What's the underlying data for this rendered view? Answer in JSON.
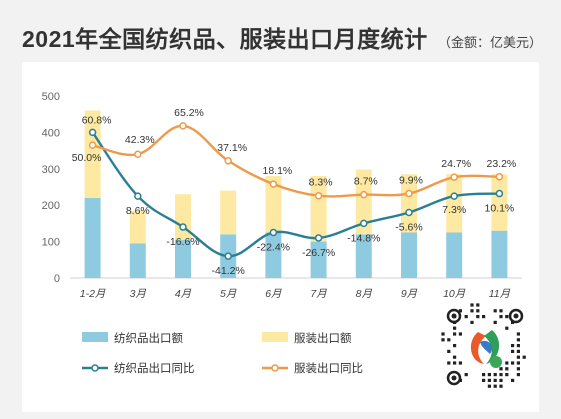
{
  "header": {
    "title": "2021年全国纺织品、服装出口月度统计",
    "unit": "（金额：亿美元）"
  },
  "colors": {
    "textile_bar": "#8fcbe0",
    "garment_bar": "#fde9a2",
    "textile_line": "#2a7f96",
    "garment_line": "#ef9a4b"
  },
  "chart_data": {
    "type": "bar",
    "categories": [
      "1-2月",
      "3月",
      "4月",
      "5月",
      "6月",
      "7月",
      "8月",
      "9月",
      "10月",
      "11月"
    ],
    "ylim": [
      0,
      500
    ],
    "yticks": [
      0,
      100,
      200,
      300,
      400,
      500
    ],
    "grid": false,
    "legend_position": "bottom",
    "series": [
      {
        "name": "纺织品出口额",
        "kind": "bar-stack-bottom",
        "values": [
          220,
          95,
          105,
          120,
          125,
          100,
          120,
          125,
          125,
          130
        ]
      },
      {
        "name": "服装出口额",
        "kind": "bar-stack-top",
        "values": [
          240,
          90,
          125,
          120,
          155,
          180,
          178,
          160,
          160,
          155
        ]
      },
      {
        "name": "纺织品出口同比",
        "kind": "line",
        "values": [
          400,
          225,
          140,
          60,
          125,
          110,
          150,
          180,
          225,
          232
        ],
        "labels": [
          "60.8%",
          "8.6%",
          "-16.6%",
          "-41.2%",
          "-22.4%",
          "-26.7%",
          "-14.8%",
          "-5.6%",
          "7.3%",
          "10.1%"
        ]
      },
      {
        "name": "服装出口同比",
        "kind": "line",
        "values": [
          365,
          340,
          418,
          322,
          258,
          226,
          229,
          232,
          277,
          278
        ],
        "labels": [
          "50.0%",
          "42.3%",
          "65.2%",
          "37.1%",
          "18.1%",
          "8.3%",
          "8.7%",
          "9.9%",
          "24.7%",
          "23.2%"
        ]
      }
    ]
  },
  "qr": {
    "icon": "qr-code-mini-program-icon"
  }
}
